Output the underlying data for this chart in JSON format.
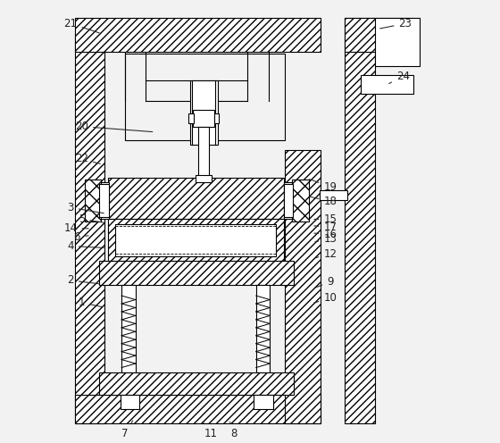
{
  "bg_color": "#f2f2f2",
  "fig_width": 5.6,
  "fig_height": 4.96,
  "dpi": 100,
  "annotations": [
    [
      "21",
      [
        0.038,
        0.952
      ],
      [
        0.105,
        0.93
      ]
    ],
    [
      "20",
      [
        0.062,
        0.73
      ],
      [
        0.22,
        0.718
      ]
    ],
    [
      "22",
      [
        0.062,
        0.66
      ],
      [
        0.107,
        0.648
      ]
    ],
    [
      "3",
      [
        0.038,
        0.555
      ],
      [
        0.115,
        0.542
      ]
    ],
    [
      "5",
      [
        0.062,
        0.53
      ],
      [
        0.115,
        0.522
      ]
    ],
    [
      "14",
      [
        0.038,
        0.51
      ],
      [
        0.082,
        0.51
      ]
    ],
    [
      "6",
      [
        0.052,
        0.492
      ],
      [
        0.082,
        0.495
      ]
    ],
    [
      "4",
      [
        0.038,
        0.472
      ],
      [
        0.115,
        0.468
      ]
    ],
    [
      "2",
      [
        0.038,
        0.398
      ],
      [
        0.105,
        0.39
      ]
    ],
    [
      "1",
      [
        0.062,
        0.35
      ],
      [
        0.11,
        0.34
      ]
    ],
    [
      "7",
      [
        0.155,
        0.068
      ],
      [
        0.175,
        0.1
      ]
    ],
    [
      "11",
      [
        0.34,
        0.068
      ],
      [
        0.32,
        0.098
      ]
    ],
    [
      "8",
      [
        0.39,
        0.068
      ],
      [
        0.38,
        0.098
      ]
    ],
    [
      "9",
      [
        0.598,
        0.395
      ],
      [
        0.56,
        0.38
      ]
    ],
    [
      "10",
      [
        0.598,
        0.36
      ],
      [
        0.558,
        0.348
      ]
    ],
    [
      "12",
      [
        0.598,
        0.455
      ],
      [
        0.56,
        0.445
      ]
    ],
    [
      "13",
      [
        0.598,
        0.488
      ],
      [
        0.56,
        0.48
      ]
    ],
    [
      "15",
      [
        0.598,
        0.53
      ],
      [
        0.558,
        0.53
      ]
    ],
    [
      "17",
      [
        0.598,
        0.513
      ],
      [
        0.558,
        0.516
      ]
    ],
    [
      "16",
      [
        0.598,
        0.498
      ],
      [
        0.558,
        0.5
      ]
    ],
    [
      "18",
      [
        0.598,
        0.568
      ],
      [
        0.548,
        0.58
      ]
    ],
    [
      "19",
      [
        0.598,
        0.6
      ],
      [
        0.548,
        0.618
      ]
    ],
    [
      "23",
      [
        0.76,
        0.952
      ],
      [
        0.7,
        0.94
      ]
    ],
    [
      "24",
      [
        0.755,
        0.838
      ],
      [
        0.72,
        0.82
      ]
    ]
  ]
}
